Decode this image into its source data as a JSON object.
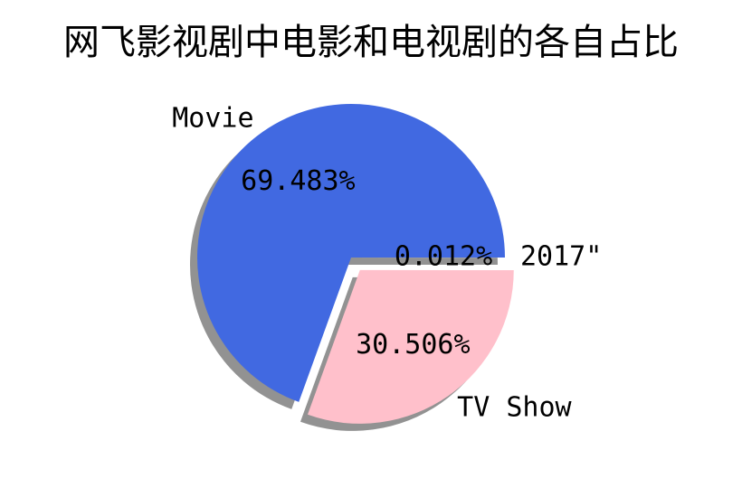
{
  "chart_data": {
    "type": "pie",
    "title": "网飞影视剧中电影和电视剧的各自占比",
    "slices": [
      {
        "label": "Movie",
        "value": 69.483,
        "value_label": "69.483%",
        "color": "#4169e1",
        "explode": 0
      },
      {
        "label": "TV Show",
        "value": 30.506,
        "value_label": "30.506%",
        "color": "#ffc0cb",
        "explode": 0.1
      },
      {
        "label": "2017\"",
        "value": 0.012,
        "value_label": "0.012%",
        "color": "#ffffff",
        "explode": 0
      }
    ],
    "shadow": true,
    "shadow_color": "#7f7f7f",
    "legend": "none"
  }
}
